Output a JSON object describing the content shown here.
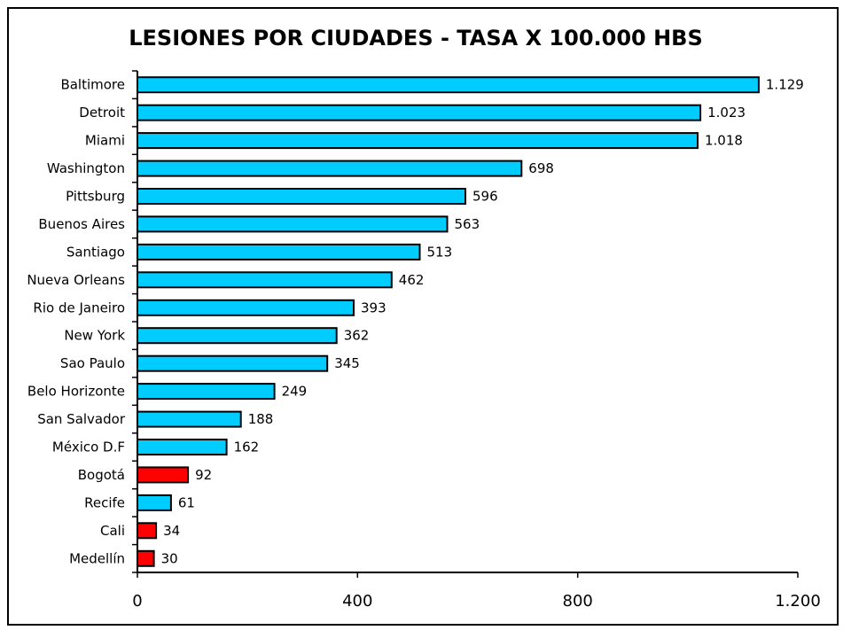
{
  "chart_data": {
    "type": "bar",
    "orientation": "horizontal",
    "title": "LESIONES POR CIUDADES - TASA X 100.000 HBS",
    "xlim": [
      0,
      1200
    ],
    "xticks": [
      0,
      400,
      800,
      1200
    ],
    "xtick_labels": [
      "0",
      "400",
      "800",
      "1.200"
    ],
    "grid": false,
    "colors": {
      "default": "#00ccff",
      "highlight": "#ff0000",
      "border": "#000000"
    },
    "bars": [
      {
        "category": "Baltimore",
        "value": 1129,
        "label": "1.129",
        "color": "#00ccff"
      },
      {
        "category": "Detroit",
        "value": 1023,
        "label": "1.023",
        "color": "#00ccff"
      },
      {
        "category": "Miami",
        "value": 1018,
        "label": "1.018",
        "color": "#00ccff"
      },
      {
        "category": "Washington",
        "value": 698,
        "label": "698",
        "color": "#00ccff"
      },
      {
        "category": "Pittsburg",
        "value": 596,
        "label": "596",
        "color": "#00ccff"
      },
      {
        "category": "Buenos Aires",
        "value": 563,
        "label": "563",
        "color": "#00ccff"
      },
      {
        "category": "Santiago",
        "value": 513,
        "label": "513",
        "color": "#00ccff"
      },
      {
        "category": "Nueva Orleans",
        "value": 462,
        "label": "462",
        "color": "#00ccff"
      },
      {
        "category": "Rio de Janeiro",
        "value": 393,
        "label": "393",
        "color": "#00ccff"
      },
      {
        "category": "New York",
        "value": 362,
        "label": "362",
        "color": "#00ccff"
      },
      {
        "category": "Sao Paulo",
        "value": 345,
        "label": "345",
        "color": "#00ccff"
      },
      {
        "category": "Belo Horizonte",
        "value": 249,
        "label": "249",
        "color": "#00ccff"
      },
      {
        "category": "San Salvador",
        "value": 188,
        "label": "188",
        "color": "#00ccff"
      },
      {
        "category": "México D.F",
        "value": 162,
        "label": "162",
        "color": "#00ccff"
      },
      {
        "category": "Bogotá",
        "value": 92,
        "label": "92",
        "color": "#ff0000"
      },
      {
        "category": "Recife",
        "value": 61,
        "label": "61",
        "color": "#00ccff"
      },
      {
        "category": "Cali",
        "value": 34,
        "label": "34",
        "color": "#ff0000"
      },
      {
        "category": "Medellín",
        "value": 30,
        "label": "30",
        "color": "#ff0000"
      }
    ]
  }
}
